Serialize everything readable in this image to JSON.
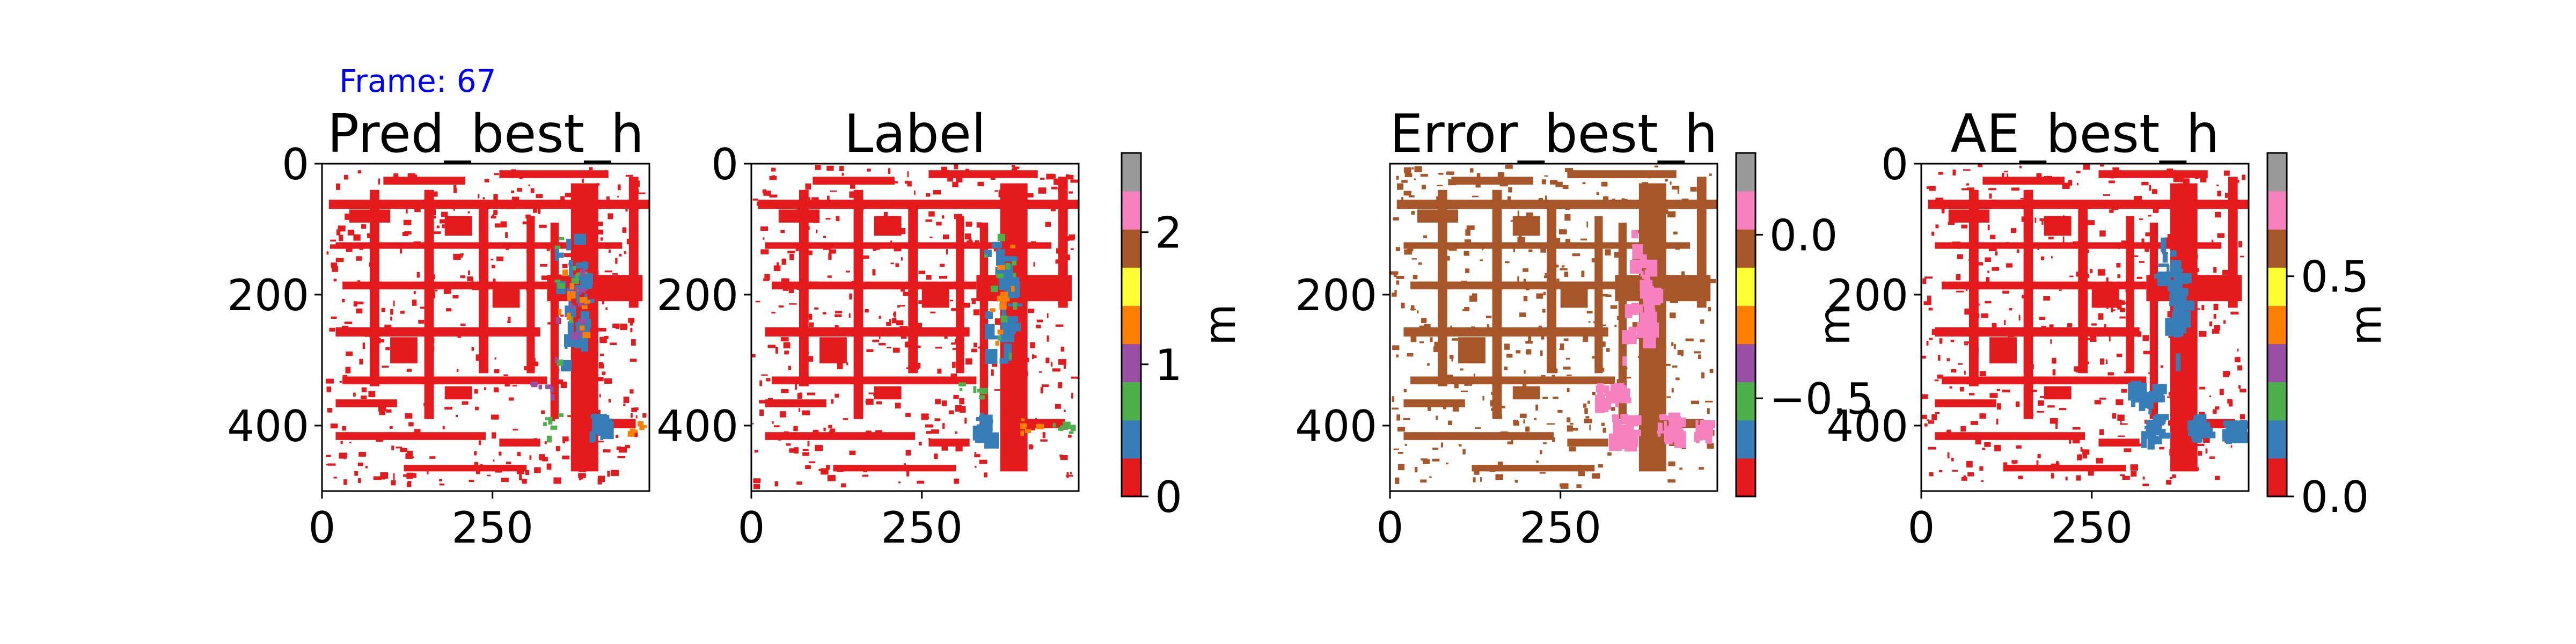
{
  "frame_label": "Frame: 67",
  "colors": {
    "tab10_map": [
      "#e41a1c",
      "#377eb8",
      "#4daf4a",
      "#984ea3",
      "#ff7f00",
      "#ffff33",
      "#a65628",
      "#f781bf",
      "#999999"
    ],
    "frame_label": "#0000ff",
    "axis": "#000000"
  },
  "chart_data": [
    {
      "type": "heatmap",
      "title": "Pred_best_h",
      "xticks": [
        "0",
        "250"
      ],
      "yticks": [
        "0",
        "200",
        "400"
      ],
      "xlim": [
        0,
        480
      ],
      "ylim": [
        500,
        0
      ],
      "dominant_color": "#e41a1c",
      "overlay_colors": [
        "#377eb8",
        "#4daf4a",
        "#984ea3",
        "#ff7f00"
      ]
    },
    {
      "type": "heatmap",
      "title": "Label",
      "xticks": [
        "0",
        "250"
      ],
      "yticks": [
        "0",
        "200",
        "400"
      ],
      "xlim": [
        0,
        480
      ],
      "ylim": [
        500,
        0
      ],
      "dominant_color": "#e41a1c",
      "overlay_colors": [
        "#377eb8",
        "#4daf4a",
        "#ff7f00"
      ],
      "colorbar": {
        "label": "m",
        "ticks": [
          "0",
          "1",
          "2"
        ],
        "tick_values": [
          0,
          1,
          2
        ],
        "range": [
          0,
          2.6
        ]
      }
    },
    {
      "type": "heatmap",
      "title": "Error_best_h",
      "xticks": [
        "0",
        "250"
      ],
      "yticks": [
        "200",
        "400"
      ],
      "xlim": [
        0,
        480
      ],
      "ylim": [
        500,
        0
      ],
      "dominant_color": "#a65628",
      "overlay_colors": [
        "#f781bf"
      ],
      "colorbar": {
        "label": "m",
        "ticks": [
          "0.0",
          "−0.5"
        ],
        "tick_values": [
          0.0,
          -0.5
        ],
        "range": [
          -0.8,
          0.25
        ]
      }
    },
    {
      "type": "heatmap",
      "title": "AE_best_h",
      "xticks": [
        "0",
        "250"
      ],
      "yticks": [
        "0",
        "200",
        "400"
      ],
      "xlim": [
        0,
        480
      ],
      "ylim": [
        500,
        0
      ],
      "dominant_color": "#e41a1c",
      "overlay_colors": [
        "#377eb8"
      ],
      "colorbar": {
        "label": "m",
        "ticks": [
          "0.0",
          "0.5"
        ],
        "tick_values": [
          0.0,
          0.5
        ],
        "range": [
          0,
          0.78
        ]
      }
    }
  ]
}
